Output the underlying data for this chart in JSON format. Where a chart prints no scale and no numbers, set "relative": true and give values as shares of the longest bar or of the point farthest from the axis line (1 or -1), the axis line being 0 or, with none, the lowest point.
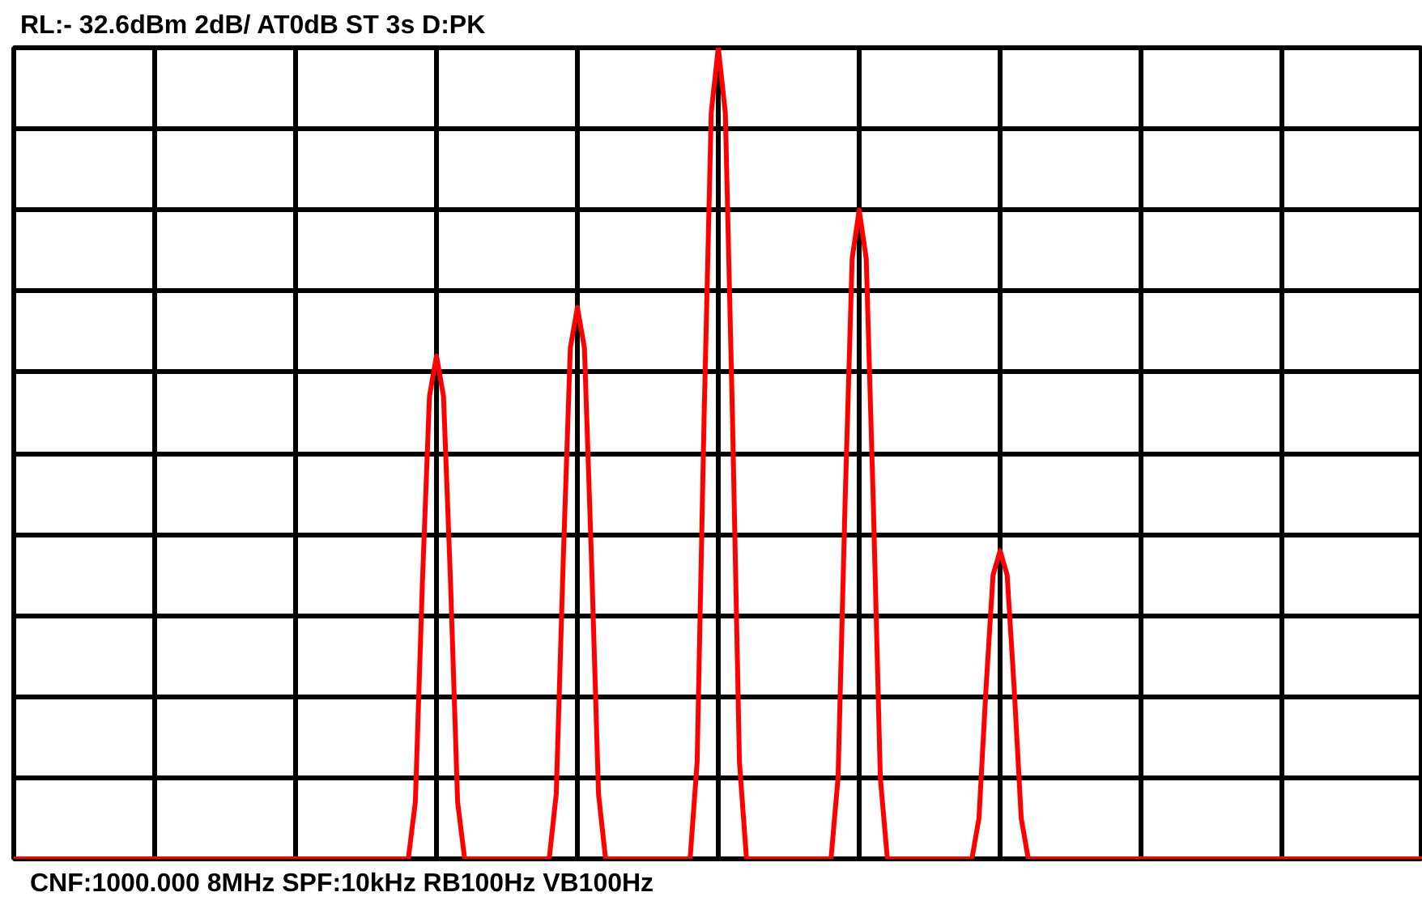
{
  "chart_data": {
    "type": "line",
    "title": "RL:- 32.6dBm     2dB/   AT0dB    ST 3s      D:PK",
    "annotations": [
      "CNF:1000.000 8MHz  SPF:10kHz              RB100Hz  VB100Hz"
    ],
    "relative": true,
    "grid": true,
    "tick_labels": false,
    "line_style": "solid",
    "color": "#ff0000",
    "categories": [
      null,
      null,
      null,
      null,
      null,
      null,
      null,
      null,
      null,
      null,
      null,
      null,
      null,
      null,
      null,
      null,
      null,
      null,
      null,
      null,
      null,
      null,
      null,
      null,
      null,
      null,
      null,
      null,
      null,
      null,
      null,
      null,
      null,
      null,
      null,
      null,
      null,
      null,
      null,
      null,
      null,
      null,
      null,
      null,
      null,
      null,
      null,
      null,
      null,
      null,
      null,
      null,
      null,
      null,
      null,
      null,
      null,
      null,
      null,
      null,
      null,
      null,
      null,
      null,
      null,
      null,
      null,
      null,
      null,
      null,
      null,
      null,
      null,
      null,
      null,
      null,
      null,
      null,
      null,
      null,
      null,
      null,
      null,
      null,
      null,
      null,
      null,
      null,
      null,
      null,
      null,
      null,
      null,
      null,
      null,
      null,
      null,
      null,
      null,
      null,
      null,
      null,
      null,
      null,
      null,
      null,
      null,
      null,
      null,
      null,
      null,
      null,
      null,
      null,
      null,
      null,
      null,
      null,
      null,
      null,
      null,
      null,
      null,
      null,
      null,
      null,
      null,
      null,
      null,
      null,
      null,
      null,
      null,
      null,
      null,
      null,
      null,
      null,
      null,
      null,
      null,
      null,
      null,
      null,
      null,
      null,
      null,
      null,
      null,
      null,
      null,
      null,
      null,
      null,
      null,
      null,
      null,
      null,
      null,
      null,
      null,
      null,
      null,
      null,
      null,
      null,
      null,
      null,
      null,
      null,
      null,
      null,
      null,
      null,
      null,
      null,
      null,
      null,
      null,
      null,
      null,
      null,
      null,
      null,
      null,
      null,
      null,
      null,
      null,
      null,
      null,
      null,
      null,
      null,
      null,
      null,
      null,
      null,
      null,
      null,
      null
    ],
    "values": [
      0,
      0,
      0,
      0,
      0,
      0,
      0,
      0,
      0,
      0,
      0,
      0,
      0,
      0,
      0,
      0,
      0,
      0,
      0,
      0,
      0,
      0,
      0,
      0,
      0,
      0,
      0,
      0,
      0,
      0,
      0,
      0,
      0,
      0,
      0,
      0,
      0,
      0,
      0,
      0,
      0,
      0,
      0,
      0,
      0,
      0,
      0,
      0,
      0,
      0,
      0,
      0,
      0,
      0,
      0,
      0,
      0,
      0.07,
      0.34,
      0.57,
      0.62,
      0.57,
      0.34,
      0.07,
      0,
      0,
      0,
      0,
      0,
      0,
      0,
      0,
      0,
      0,
      0,
      0,
      0,
      0.08,
      0.37,
      0.63,
      0.68,
      0.63,
      0.37,
      0.08,
      0,
      0,
      0,
      0,
      0,
      0,
      0,
      0,
      0,
      0,
      0,
      0,
      0,
      0.12,
      0.55,
      0.92,
      1,
      0.92,
      0.55,
      0.12,
      0,
      0,
      0,
      0,
      0,
      0,
      0,
      0,
      0,
      0,
      0,
      0,
      0,
      0.1,
      0.44,
      0.74,
      0.8,
      0.74,
      0.44,
      0.1,
      0,
      0,
      0,
      0,
      0,
      0,
      0,
      0,
      0,
      0,
      0,
      0,
      0,
      0.05,
      0.21,
      0.35,
      0.38,
      0.35,
      0.21,
      0.05,
      0,
      0,
      0,
      0,
      0,
      0,
      0,
      0,
      0,
      0,
      0,
      0,
      0,
      0,
      0,
      0,
      0,
      0,
      0,
      0,
      0,
      0,
      0,
      0,
      0,
      0,
      0,
      0,
      0,
      0,
      0,
      0,
      0,
      0,
      0,
      0,
      0,
      0,
      0,
      0,
      0,
      0,
      0,
      0,
      0,
      0,
      0,
      0,
      0,
      0,
      0,
      0,
      0,
      0,
      0,
      0,
      0
    ]
  }
}
